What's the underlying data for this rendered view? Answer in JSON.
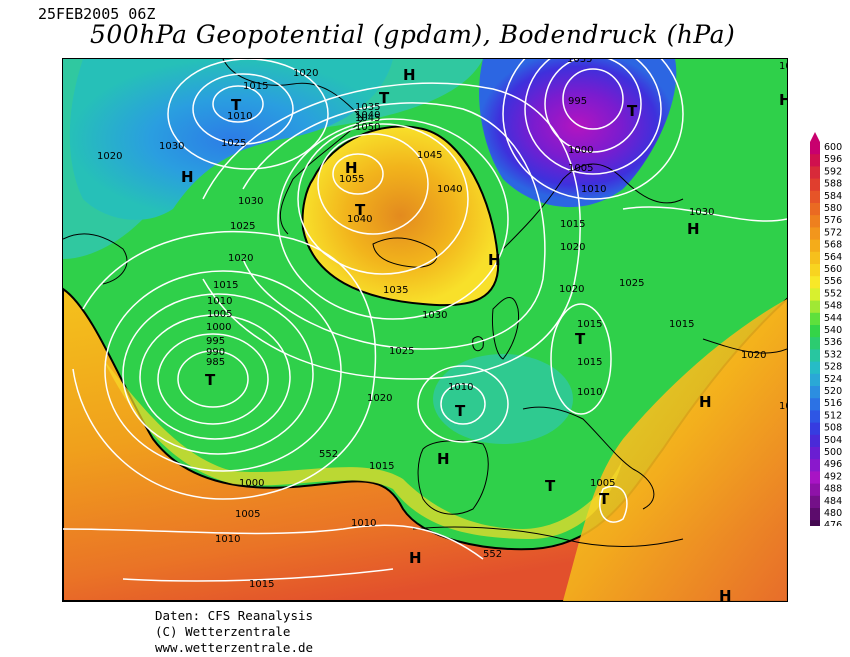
{
  "header": {
    "date": "25FEB2005 06Z",
    "title": "500hPa Geopotential (gpdam), Bodendruck (hPa)"
  },
  "map": {
    "isobar_labels": [
      {
        "id": "i1",
        "text": "1015"
      },
      {
        "id": "i2",
        "text": "1020"
      },
      {
        "id": "i3",
        "text": "1010"
      },
      {
        "id": "i4",
        "text": "1025"
      },
      {
        "id": "i5",
        "text": "1030"
      },
      {
        "id": "i6",
        "text": "1020"
      },
      {
        "id": "i7",
        "text": "1035"
      },
      {
        "id": "i8",
        "text": "1040"
      },
      {
        "id": "i9",
        "text": "1045"
      },
      {
        "id": "i10",
        "text": "1050"
      },
      {
        "id": "i11",
        "text": "1055"
      },
      {
        "id": "i12",
        "text": "1040"
      },
      {
        "id": "i13",
        "text": "1045"
      },
      {
        "id": "i14",
        "text": "1040"
      },
      {
        "id": "i15",
        "text": "995"
      },
      {
        "id": "i16",
        "text": "1000"
      },
      {
        "id": "i17",
        "text": "1005"
      },
      {
        "id": "i18",
        "text": "1010"
      },
      {
        "id": "i19",
        "text": "1030"
      },
      {
        "id": "i20",
        "text": "1025"
      },
      {
        "id": "i21",
        "text": "1020"
      },
      {
        "id": "i22",
        "text": "1015"
      },
      {
        "id": "i23",
        "text": "1010"
      },
      {
        "id": "i24",
        "text": "1005"
      },
      {
        "id": "i25",
        "text": "1000"
      },
      {
        "id": "i26",
        "text": "995"
      },
      {
        "id": "i27",
        "text": "990"
      },
      {
        "id": "i28",
        "text": "985"
      },
      {
        "id": "i29",
        "text": "1035"
      },
      {
        "id": "i30",
        "text": "1030"
      },
      {
        "id": "i31",
        "text": "1025"
      },
      {
        "id": "i32",
        "text": "1020"
      },
      {
        "id": "i33",
        "text": "1015"
      },
      {
        "id": "i34",
        "text": "1020"
      },
      {
        "id": "i35",
        "text": "1015"
      },
      {
        "id": "i36",
        "text": "1010"
      },
      {
        "id": "i37",
        "text": "1015"
      },
      {
        "id": "i38",
        "text": "1010"
      },
      {
        "id": "i39",
        "text": "1025"
      },
      {
        "id": "i40",
        "text": "1030"
      },
      {
        "id": "i41",
        "text": "1015"
      },
      {
        "id": "i42",
        "text": "1020"
      },
      {
        "id": "i43",
        "text": "1015"
      },
      {
        "id": "i44",
        "text": "1005"
      },
      {
        "id": "i45",
        "text": "1000"
      },
      {
        "id": "i46",
        "text": "1005"
      },
      {
        "id": "i47",
        "text": "1010"
      },
      {
        "id": "i48",
        "text": "1015"
      },
      {
        "id": "i49",
        "text": "1010"
      },
      {
        "id": "i50",
        "text": "1020"
      },
      {
        "id": "i51",
        "text": "1020"
      },
      {
        "id": "i52",
        "text": "1030"
      },
      {
        "id": "i53",
        "text": "1035"
      }
    ],
    "contour_labels": [
      {
        "id": "c1",
        "text": "552"
      },
      {
        "id": "c2",
        "text": "552"
      }
    ],
    "pressure_centers": [
      {
        "id": "p1",
        "text": "T"
      },
      {
        "id": "p2",
        "text": "H"
      },
      {
        "id": "p3",
        "text": "H"
      },
      {
        "id": "p4",
        "text": "T"
      },
      {
        "id": "p5",
        "text": "H"
      },
      {
        "id": "p6",
        "text": "T"
      },
      {
        "id": "p7",
        "text": "H"
      },
      {
        "id": "p8",
        "text": "H"
      },
      {
        "id": "p9",
        "text": "H"
      },
      {
        "id": "p10",
        "text": "T"
      },
      {
        "id": "p11",
        "text": "T"
      },
      {
        "id": "p12",
        "text": "T"
      },
      {
        "id": "p13",
        "text": "H"
      },
      {
        "id": "p14",
        "text": "T"
      },
      {
        "id": "p15",
        "text": "T"
      },
      {
        "id": "p16",
        "text": "H"
      },
      {
        "id": "p17",
        "text": "H"
      },
      {
        "id": "p18",
        "text": "H"
      },
      {
        "id": "p19",
        "text": "T"
      }
    ]
  },
  "legend": {
    "values": [
      "600",
      "596",
      "592",
      "588",
      "584",
      "580",
      "576",
      "572",
      "568",
      "564",
      "560",
      "556",
      "552",
      "548",
      "544",
      "540",
      "536",
      "532",
      "528",
      "524",
      "520",
      "516",
      "512",
      "508",
      "504",
      "500",
      "496",
      "492",
      "488",
      "484",
      "480",
      "476"
    ],
    "colors": [
      "#c8006e",
      "#d0104e",
      "#d82a3a",
      "#e03e2e",
      "#e65428",
      "#ea6a22",
      "#ee801e",
      "#f2961c",
      "#f4ac1a",
      "#f6c01c",
      "#f8d420",
      "#f8e828",
      "#d8f02e",
      "#a0e834",
      "#5ee03c",
      "#34d448",
      "#2ccc70",
      "#28c6a0",
      "#26bcc6",
      "#2aa8d6",
      "#2c8ee0",
      "#2c72e4",
      "#2e56e4",
      "#363ce0",
      "#4a2ad8",
      "#6a1ed2",
      "#8a18cc",
      "#a814c4",
      "#8e12a8",
      "#741088",
      "#5c0c6c",
      "#440850"
    ]
  },
  "footer": {
    "line1": "Daten: CFS Reanalysis",
    "line2": "(C) Wetterzentrale",
    "line3": "www.wetterzentrale.de"
  }
}
